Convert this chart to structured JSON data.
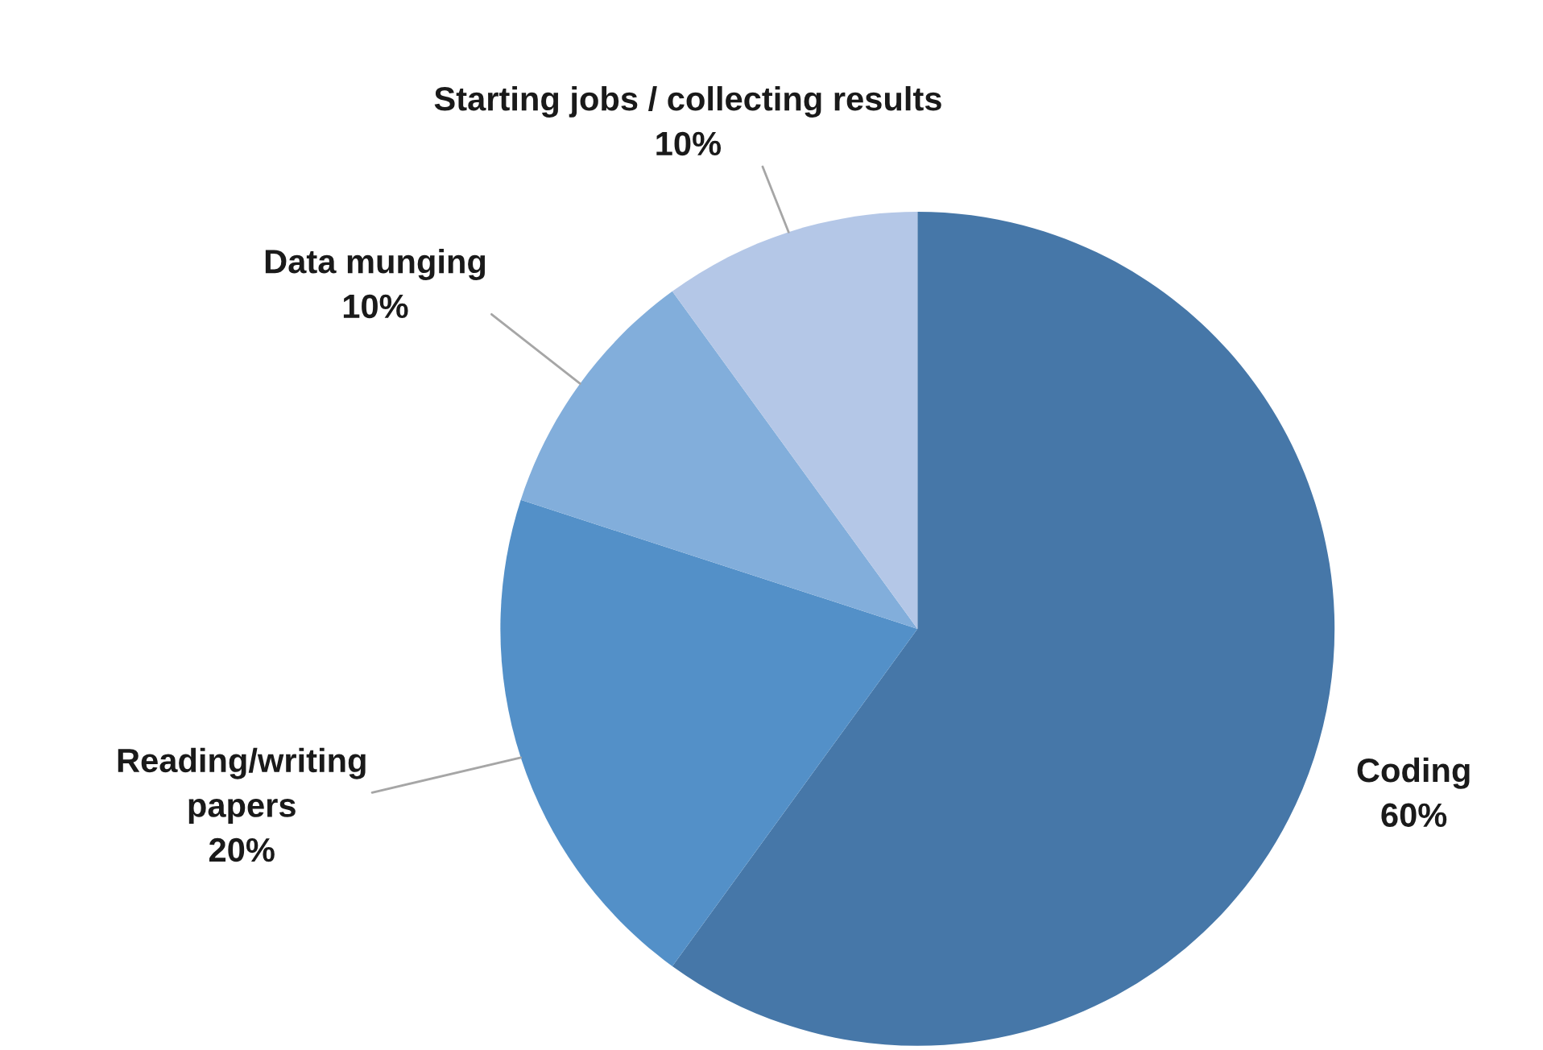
{
  "chart_data": {
    "type": "pie",
    "categories": [
      "Coding",
      "Reading/writing\npapers",
      "Data munging",
      "Starting jobs / collecting results"
    ],
    "values": [
      60,
      20,
      10,
      10
    ],
    "value_labels": [
      "60%",
      "20%",
      "10%",
      "10%"
    ],
    "colors": [
      "#4677a8",
      "#5390c8",
      "#82aedb",
      "#b4c7e7"
    ],
    "legend": false
  }
}
